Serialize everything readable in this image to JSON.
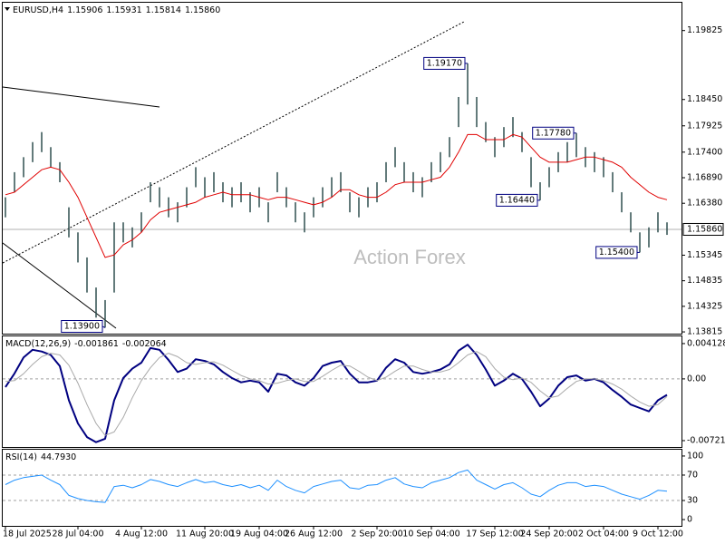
{
  "chart_data": [
    {
      "type": "ohlc",
      "title": "EURUSD,H4",
      "quote": [
        1.15906,
        1.15931,
        1.15814,
        {
          "value": 1.1586,
          "label": "1.15860"
        }
      ],
      "watermark": "Action Forex",
      "categories": [
        "18 Jul 2025",
        null,
        null,
        null,
        null,
        null,
        null,
        null,
        "28 Jul 04:00",
        null,
        null,
        null,
        null,
        null,
        null,
        "4 Aug 12:00",
        null,
        null,
        null,
        null,
        null,
        null,
        "11 Aug 20:00",
        null,
        null,
        null,
        null,
        null,
        "19 Aug 04:00",
        null,
        null,
        null,
        null,
        null,
        "26 Aug 12:00",
        null,
        null,
        null,
        null,
        null,
        null,
        "2 Sep 20:00",
        null,
        null,
        null,
        null,
        null,
        "10 Sep 04:00",
        null,
        null,
        null,
        null,
        null,
        null,
        "17 Sep 12:00",
        null,
        null,
        null,
        null,
        null,
        "24 Sep 20:00",
        null,
        null,
        null,
        null,
        null,
        "2 Oct 04:00",
        null,
        null,
        null,
        null,
        null,
        "9 Oct 12:00",
        null
      ],
      "high": [
        1.165,
        1.17,
        1.173,
        1.176,
        1.178,
        1.175,
        1.172,
        1.163,
        1.158,
        1.153,
        1.147,
        1.1445,
        1.16,
        1.16,
        1.159,
        1.162,
        1.168,
        1.167,
        1.165,
        1.164,
        1.167,
        1.171,
        1.169,
        1.17,
        1.168,
        1.167,
        1.168,
        1.166,
        1.167,
        1.164,
        1.17,
        1.167,
        1.164,
        1.162,
        1.165,
        1.167,
        1.169,
        1.17,
        1.166,
        1.165,
        1.167,
        1.168,
        1.172,
        1.175,
        1.172,
        1.17,
        1.169,
        1.172,
        1.174,
        1.177,
        1.185,
        1.1917,
        1.185,
        1.18,
        1.177,
        1.179,
        1.181,
        1.178,
        1.173,
        1.168,
        1.171,
        1.174,
        1.176,
        1.1778,
        1.175,
        1.174,
        1.173,
        1.17,
        1.166,
        1.162,
        1.158,
        1.159,
        1.162,
        1.16
      ],
      "low": [
        1.161,
        1.166,
        1.169,
        1.172,
        1.174,
        1.171,
        1.168,
        1.157,
        1.152,
        1.146,
        1.141,
        1.139,
        1.146,
        1.156,
        1.155,
        1.158,
        1.164,
        1.163,
        1.161,
        1.16,
        1.163,
        1.167,
        1.165,
        1.166,
        1.164,
        1.163,
        1.164,
        1.162,
        1.163,
        1.16,
        1.166,
        1.163,
        1.16,
        1.158,
        1.161,
        1.163,
        1.165,
        1.166,
        1.162,
        1.161,
        1.163,
        1.164,
        1.168,
        1.171,
        1.168,
        1.166,
        1.165,
        1.168,
        1.17,
        1.173,
        1.179,
        1.1835,
        1.179,
        1.176,
        1.173,
        1.175,
        1.177,
        1.174,
        1.167,
        1.1644,
        1.167,
        1.17,
        1.172,
        1.173,
        1.171,
        1.17,
        1.169,
        1.166,
        1.162,
        1.158,
        1.154,
        1.155,
        1.158,
        1.1575
      ],
      "bar_color": "#2f4f4f",
      "ma": {
        "color": "#e00000",
        "values": [
          1.1655,
          1.166,
          1.1675,
          1.169,
          1.1705,
          1.171,
          1.1705,
          1.168,
          1.165,
          1.161,
          1.157,
          1.153,
          1.1535,
          1.1555,
          1.1565,
          1.158,
          1.1605,
          1.162,
          1.1625,
          1.163,
          1.1635,
          1.164,
          1.165,
          1.1655,
          1.166,
          1.1655,
          1.1655,
          1.1655,
          1.165,
          1.1645,
          1.165,
          1.165,
          1.1645,
          1.164,
          1.1635,
          1.164,
          1.165,
          1.1665,
          1.1665,
          1.1655,
          1.165,
          1.165,
          1.166,
          1.1675,
          1.168,
          1.168,
          1.168,
          1.1685,
          1.169,
          1.171,
          1.174,
          1.1775,
          1.1775,
          1.1765,
          1.1765,
          1.1765,
          1.1775,
          1.177,
          1.175,
          1.173,
          1.172,
          1.172,
          1.172,
          1.1725,
          1.173,
          1.173,
          1.1725,
          1.172,
          1.171,
          1.169,
          1.1675,
          1.166,
          1.165,
          1.1645
        ]
      },
      "annotations": [
        {
          "value": 1.1917,
          "label": "1.19170"
        },
        {
          "value": 1.1778,
          "label": "1.17780"
        },
        {
          "value": 1.1644,
          "label": "1.16440"
        },
        {
          "value": 1.154,
          "label": "1.15400"
        },
        {
          "value": 1.139,
          "label": "1.13900"
        }
      ],
      "last_price": {
        "value": 1.1586,
        "label": "1.15860"
      },
      "ylim": [
        1.1378,
        1.2038
      ],
      "yticks": [
        1.19825,
        {
          "value": 1.1845,
          "label": "1.18450"
        },
        1.17925,
        {
          "value": 1.174,
          "label": "1.17400"
        },
        {
          "value": 1.1689,
          "label": "1.16890"
        },
        {
          "value": 1.1638,
          "label": "1.16380"
        },
        1.15345,
        1.14835,
        1.14325,
        1.13815
      ]
    },
    {
      "type": "line",
      "title": "MACD(12,26,9)",
      "quote": [
        -0.001861,
        -0.002064
      ],
      "series": [
        {
          "color": "#000080",
          "width": 2,
          "values": [
            -0.00095,
            0.00064,
            0.0025,
            0.0034,
            0.0032,
            0.0028,
            0.0015,
            -0.0025,
            -0.0052,
            -0.0068,
            -0.0074,
            -0.007,
            -0.0025,
            0.0001,
            0.0012,
            0.0019,
            0.0036,
            0.0034,
            0.0022,
            0.0008,
            0.0012,
            0.0023,
            0.0021,
            0.0017,
            0.0008,
            0.0001,
            -0.0004,
            -0.0002,
            -0.0004,
            -0.0015,
            0.0006,
            0.0004,
            -0.0004,
            -0.0008,
            0.0001,
            0.0015,
            0.0019,
            0.0021,
            0.0006,
            -0.0004,
            -0.0004,
            -0.0002,
            0.0013,
            0.0023,
            0.0019,
            0.0008,
            0.0006,
            0.0008,
            0.0011,
            0.0017,
            0.0033,
            0.004,
            0.0028,
            0.0011,
            -0.0008,
            -0.0002,
            0.0006,
            0,
            -0.0015,
            -0.0032,
            -0.0023,
            -0.0008,
            0.0002,
            0.0004,
            -0.0002,
            0,
            -0.0004,
            -0.0013,
            -0.0021,
            -0.003,
            -0.0034,
            -0.0038,
            -0.0025,
            -0.001861
          ]
        },
        {
          "color": "#a9a9a9",
          "width": 1,
          "values": [
            -0.0003,
            -0.0002,
            0.0006,
            0.0017,
            0.0026,
            0.003,
            0.0028,
            0.0016,
            -0.0005,
            -0.003,
            -0.0052,
            -0.0066,
            -0.0062,
            -0.0045,
            -0.0022,
            -0.0002,
            0.0013,
            0.0025,
            0.003,
            0.0026,
            0.0019,
            0.0017,
            0.0019,
            0.002,
            0.0016,
            0.001,
            0.0004,
            0,
            -0.0002,
            -0.0006,
            -0.0005,
            -0.0002,
            0,
            -0.0003,
            -0.0003,
            0.0003,
            0.001,
            0.0016,
            0.0015,
            0.0009,
            0.0002,
            -0.0002,
            0.0002,
            0.0009,
            0.0015,
            0.0015,
            0.0011,
            0.0008,
            0.0008,
            0.0011,
            0.0019,
            0.0028,
            0.0032,
            0.0026,
            0.0012,
            0.0002,
            -0.0001,
            0.0001,
            -0.0004,
            -0.0014,
            -0.0022,
            -0.002,
            -0.0011,
            -0.0003,
            0,
            0,
            -0.0002,
            -0.0006,
            -0.0012,
            -0.002,
            -0.0027,
            -0.0032,
            -0.003,
            -0.002064
          ]
        }
      ],
      "levels": [
        0
      ],
      "ylim": [
        -0.00796,
        0.00497
      ],
      "yticks": [
        0.004128,
        {
          "value": 0,
          "label": "0.00"
        },
        -0.007216
      ]
    },
    {
      "type": "line",
      "title": "RSI(14)",
      "quote": [
        {
          "value": 44.793,
          "label": "44.7930"
        }
      ],
      "series": [
        {
          "color": "#1e90ff",
          "width": 1,
          "values": [
            55,
            62,
            66,
            68,
            70,
            62,
            55,
            38,
            33,
            30,
            28,
            27,
            52,
            54,
            50,
            55,
            63,
            60,
            55,
            52,
            58,
            63,
            58,
            60,
            55,
            52,
            55,
            50,
            54,
            46,
            62,
            52,
            46,
            42,
            52,
            56,
            60,
            62,
            50,
            48,
            54,
            55,
            62,
            66,
            56,
            52,
            50,
            58,
            62,
            66,
            74,
            78,
            62,
            55,
            48,
            55,
            58,
            50,
            40,
            36,
            46,
            54,
            58,
            58,
            52,
            54,
            52,
            46,
            40,
            36,
            32,
            38,
            46,
            44.793
          ]
        }
      ],
      "levels": [
        70,
        30
      ],
      "ylim": [
        -9.9,
        109.9
      ],
      "yticks": [
        100,
        70,
        30,
        0
      ]
    }
  ]
}
